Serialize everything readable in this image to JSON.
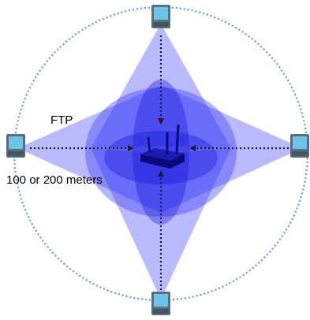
{
  "labels": {
    "protocol": "FTP",
    "range": "100 or 200 meters"
  },
  "nodes": {
    "center": {
      "icon": "wireless-router-icon"
    },
    "clients": [
      {
        "icon": "laptop-icon",
        "side": "top"
      },
      {
        "icon": "laptop-icon",
        "side": "left"
      },
      {
        "icon": "laptop-icon",
        "side": "right"
      },
      {
        "icon": "laptop-icon",
        "side": "bottom"
      }
    ]
  },
  "colors": {
    "coverage_fill": "#3b3bff",
    "coverage_boundary": "#5b9bd5",
    "arrow": "#1a1a2e",
    "device_frame": "#5a6f7a",
    "device_screen": "#6ec3e8"
  }
}
